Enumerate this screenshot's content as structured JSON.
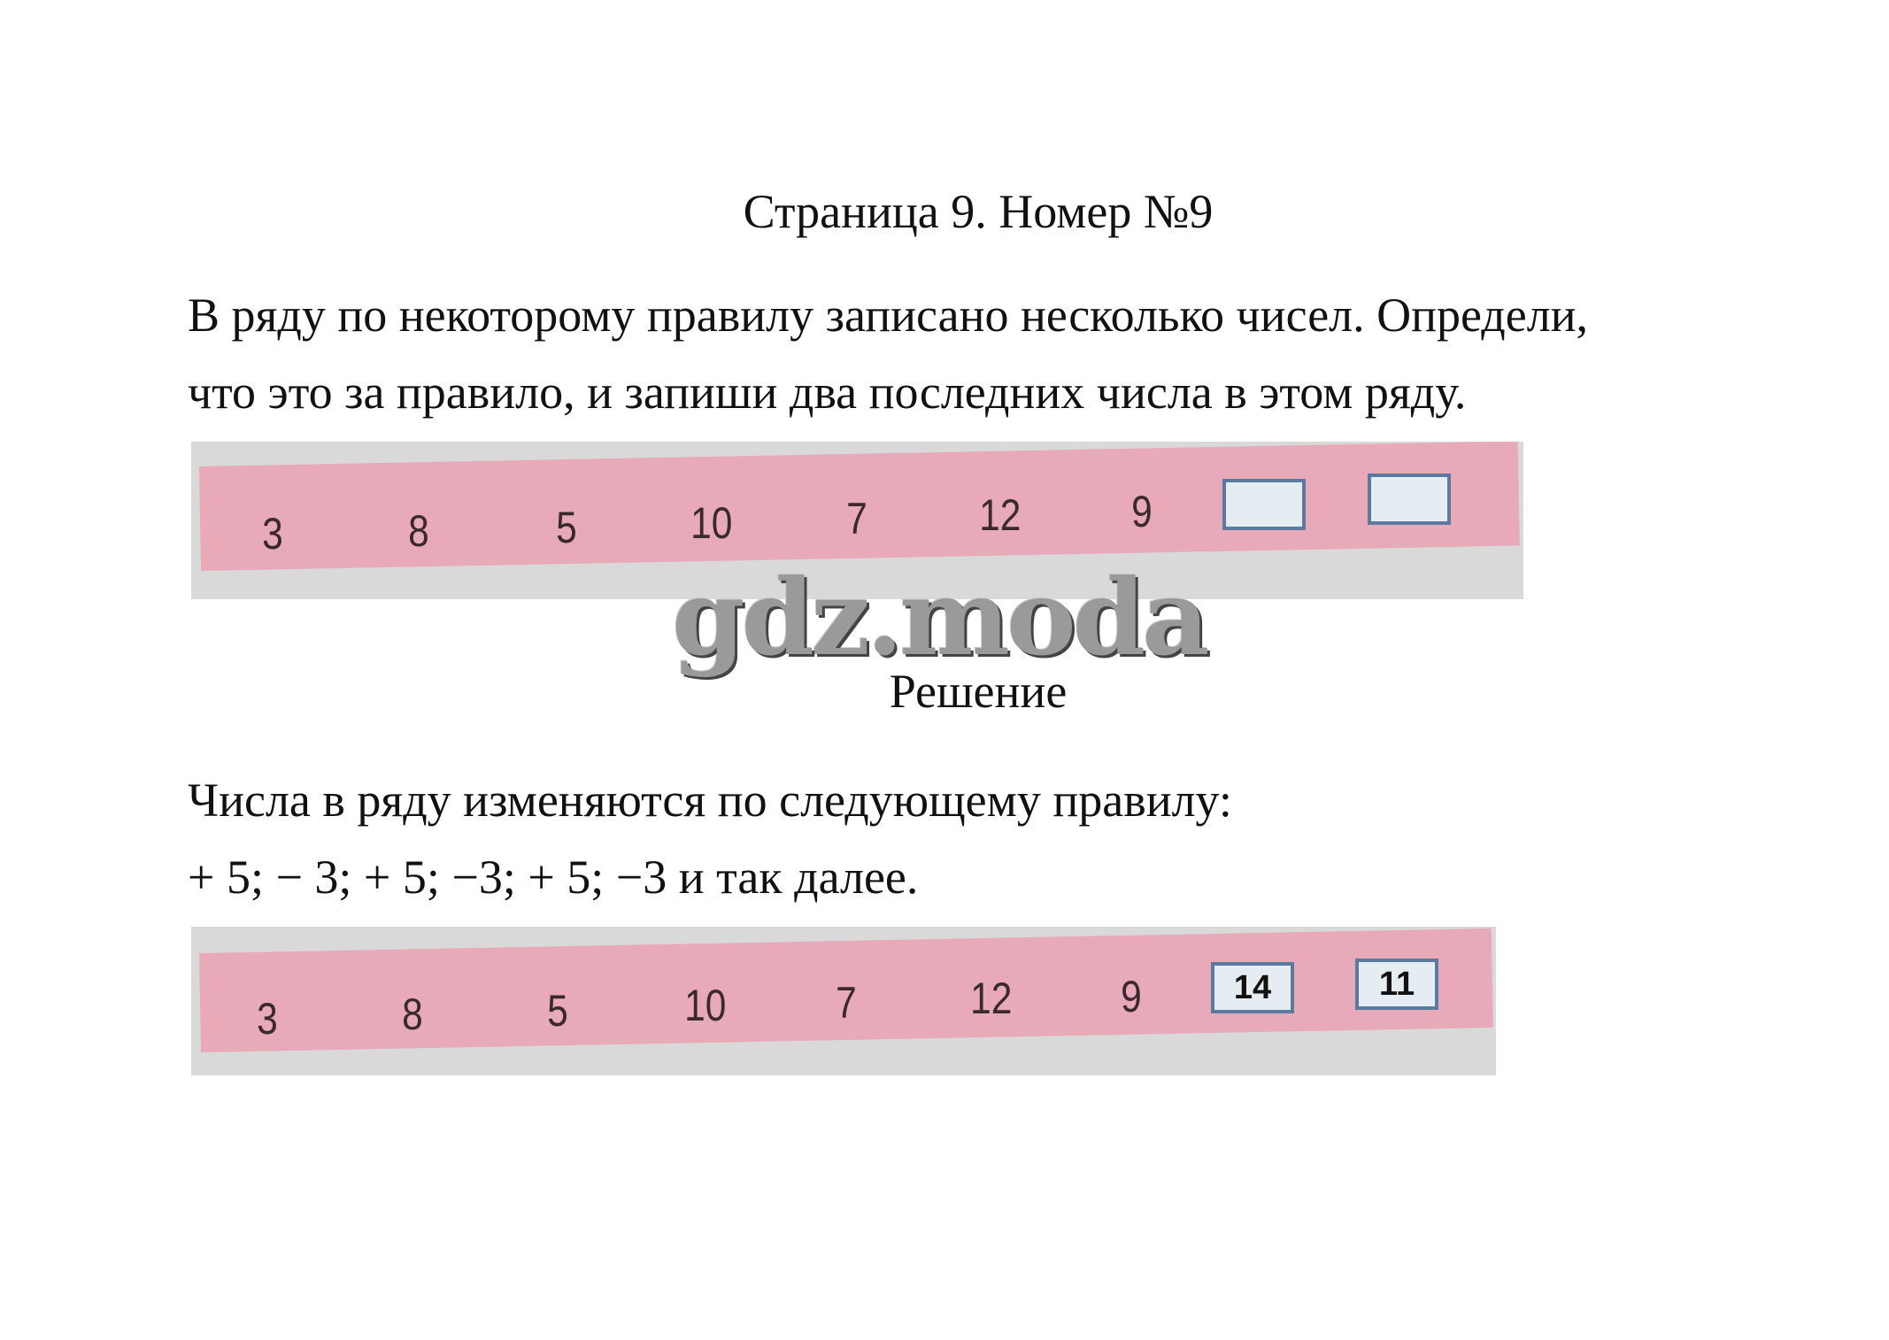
{
  "title": "Страница 9. Номер №9",
  "task": {
    "line1": "В ряду по некоторому правилу записано несколько чисел. Определи,",
    "line2": "что это за правило, и запиши два последних числа в этом ряду."
  },
  "task_strip": {
    "numbers": [
      "3",
      "8",
      "5",
      "10",
      "7",
      "12",
      "9"
    ],
    "boxes": [
      "",
      ""
    ]
  },
  "watermark": "gdz.moda",
  "solution_heading": "Решение",
  "solution": {
    "line1": "Числа в ряду изменяются по следующему правилу:",
    "line2": "+ 5; − 3; + 5; −3; + 5; −3 и так далее."
  },
  "answer_strip": {
    "numbers": [
      "3",
      "8",
      "5",
      "10",
      "7",
      "12",
      "9"
    ],
    "boxes": [
      "14",
      "11"
    ]
  },
  "colors": {
    "band": "#e8a9b8",
    "box_border": "#5a7aa0"
  }
}
